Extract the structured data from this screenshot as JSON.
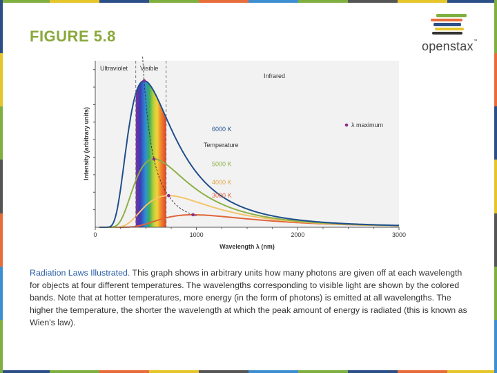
{
  "slide": {
    "figure_label": "FIGURE 5.8",
    "logo_text": "openstax",
    "logo_tm": "™",
    "caption_lead": "Radiation Laws Illustrated.",
    "caption_body": " This graph shows in arbitrary units how many photons are given off at each wavelength for objects at four different temperatures. The wavelengths corresponding to visible light are shown by the colored bands. Note that at hotter temperatures, more energy (in the form of photons) is emitted at all wavelengths. The higher the temperature, the shorter the wavelength at which the peak amount of energy is radiated (this is known as Wien's law).",
    "colors": {
      "accent_green": "#8aa83a",
      "caption_blue": "#2a5fa7",
      "plot_bg": "#f2f2f2",
      "curve_6000": "#1f4e8c",
      "curve_5000": "#8db045",
      "curve_4000": "#f5c46a",
      "curve_3000": "#e0643a",
      "max_marker": "#8b2c8b"
    }
  },
  "chart_data": {
    "type": "line",
    "xlabel": "Wavelength λ (nm)",
    "ylabel": "Intensity (arbitrary units)",
    "xlim": [
      0,
      3000
    ],
    "ylim": [
      0,
      1.0
    ],
    "xticks": [
      0,
      1000,
      2000,
      3000
    ],
    "region_labels": [
      "Ultraviolet",
      "Visible",
      "Infrared"
    ],
    "visible_band_nm": [
      400,
      700
    ],
    "legend_marker_label": "λ maximum",
    "temperature_heading": "Temperature",
    "series": [
      {
        "name": "6000 K",
        "T": 6000,
        "color": "#1f4e8c",
        "peak_nm": 483,
        "peak": 0.88
      },
      {
        "name": "5000 K",
        "T": 5000,
        "color": "#8db045",
        "peak_nm": 580,
        "peak": 0.41
      },
      {
        "name": "4000 K",
        "T": 4000,
        "color": "#f5c46a",
        "peak_nm": 725,
        "peak": 0.19
      },
      {
        "name": "3000 K",
        "T": 3000,
        "color": "#e0643a",
        "peak_nm": 966,
        "peak": 0.075
      }
    ]
  }
}
